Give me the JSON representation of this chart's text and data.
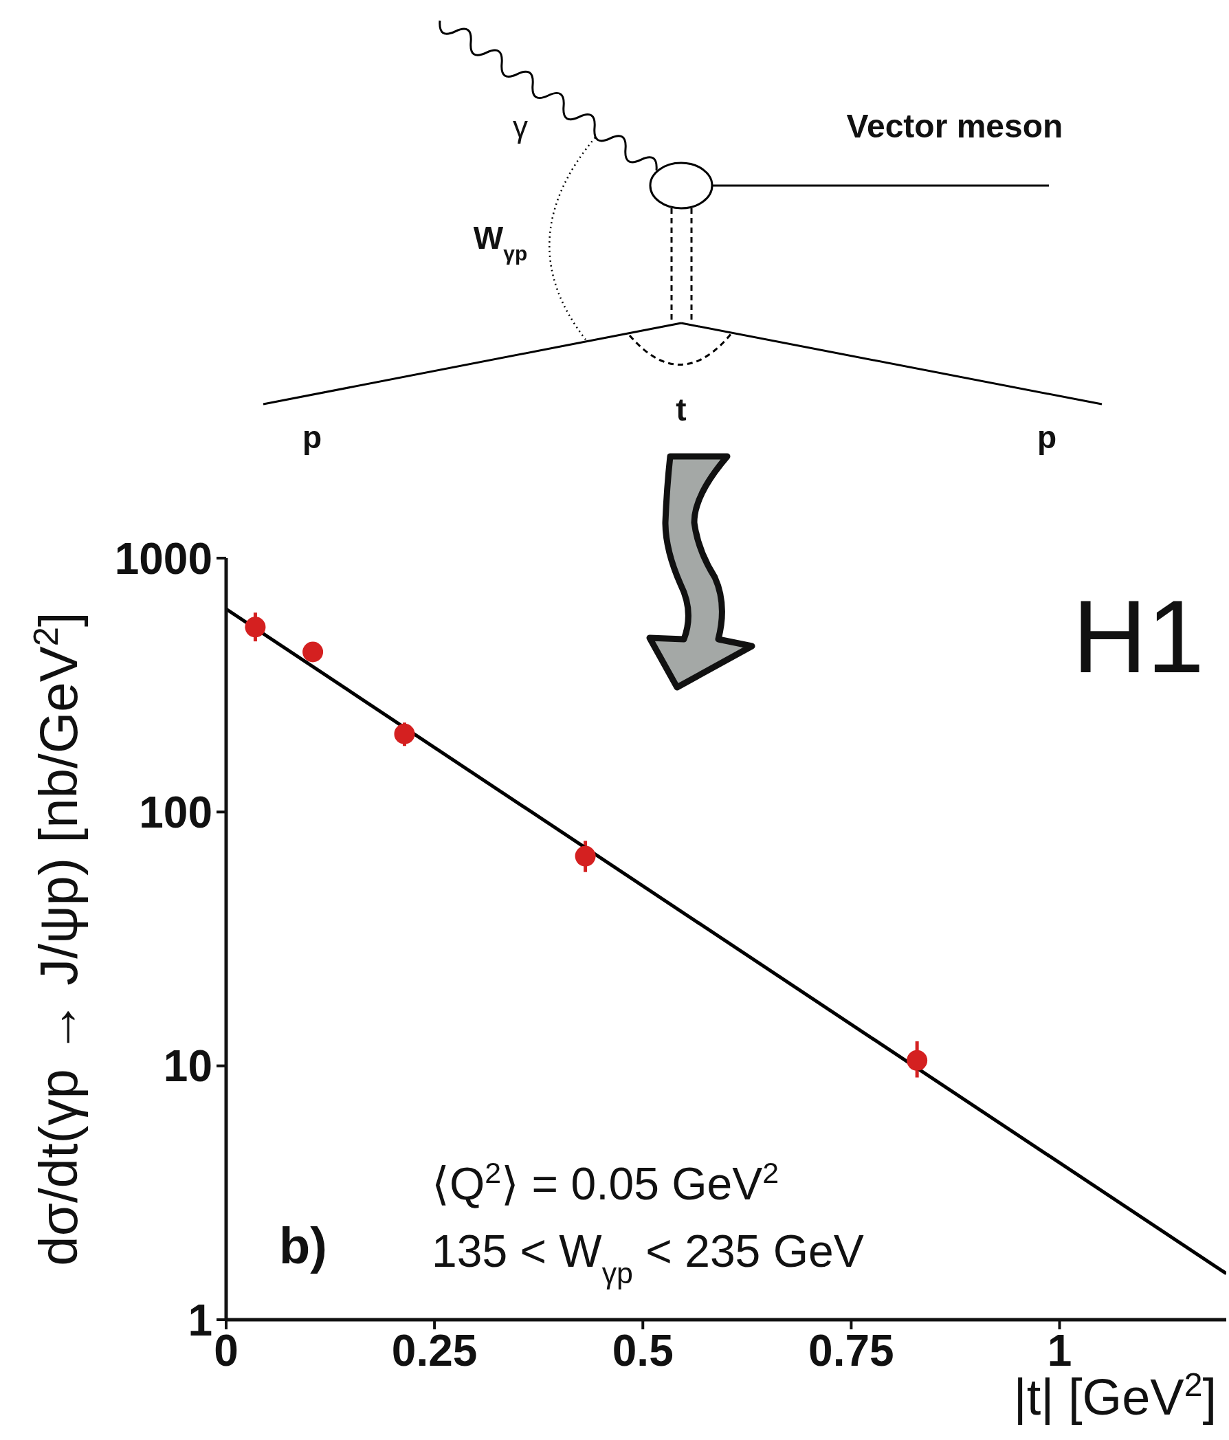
{
  "chart_data": {
    "type": "scatter",
    "xlabel": "|t| [GeV$^{2}$]",
    "ylabel": "dσ/dt(γp → J/ψp) [nb/GeV$^{2}$]",
    "xlim": [
      0,
      1.2
    ],
    "xticks": [
      0,
      0.25,
      0.5,
      0.75,
      1
    ],
    "ylim": [
      1,
      1000
    ],
    "yticks": [
      1,
      10,
      100,
      1000
    ],
    "log": "y",
    "series": [
      {
        "marker": "circle",
        "color": "#d42020",
        "x": [
          0.035,
          0.104,
          0.214,
          0.431,
          0.829
        ],
        "values": [
          535,
          427,
          203,
          67,
          10.5
        ],
        "errors": [
          [
            470,
            610
          ],
          null,
          [
            182,
            225
          ],
          [
            58,
            77
          ],
          [
            9,
            12.5
          ]
        ]
      },
      {
        "type": "line",
        "color": "#000000",
        "x": [
          0,
          1.2
        ],
        "values": [
          630,
          1.52
        ]
      }
    ],
    "annotations": [
      "Vector meson",
      "γ",
      "W$_{γp}$",
      "t",
      "p",
      "p",
      "H1",
      "b)",
      "⟨Q$^{2}$⟩ = 0.05 GeV$^{2}$",
      "135 < W$_{γp}$ < 235 GeV"
    ]
  }
}
